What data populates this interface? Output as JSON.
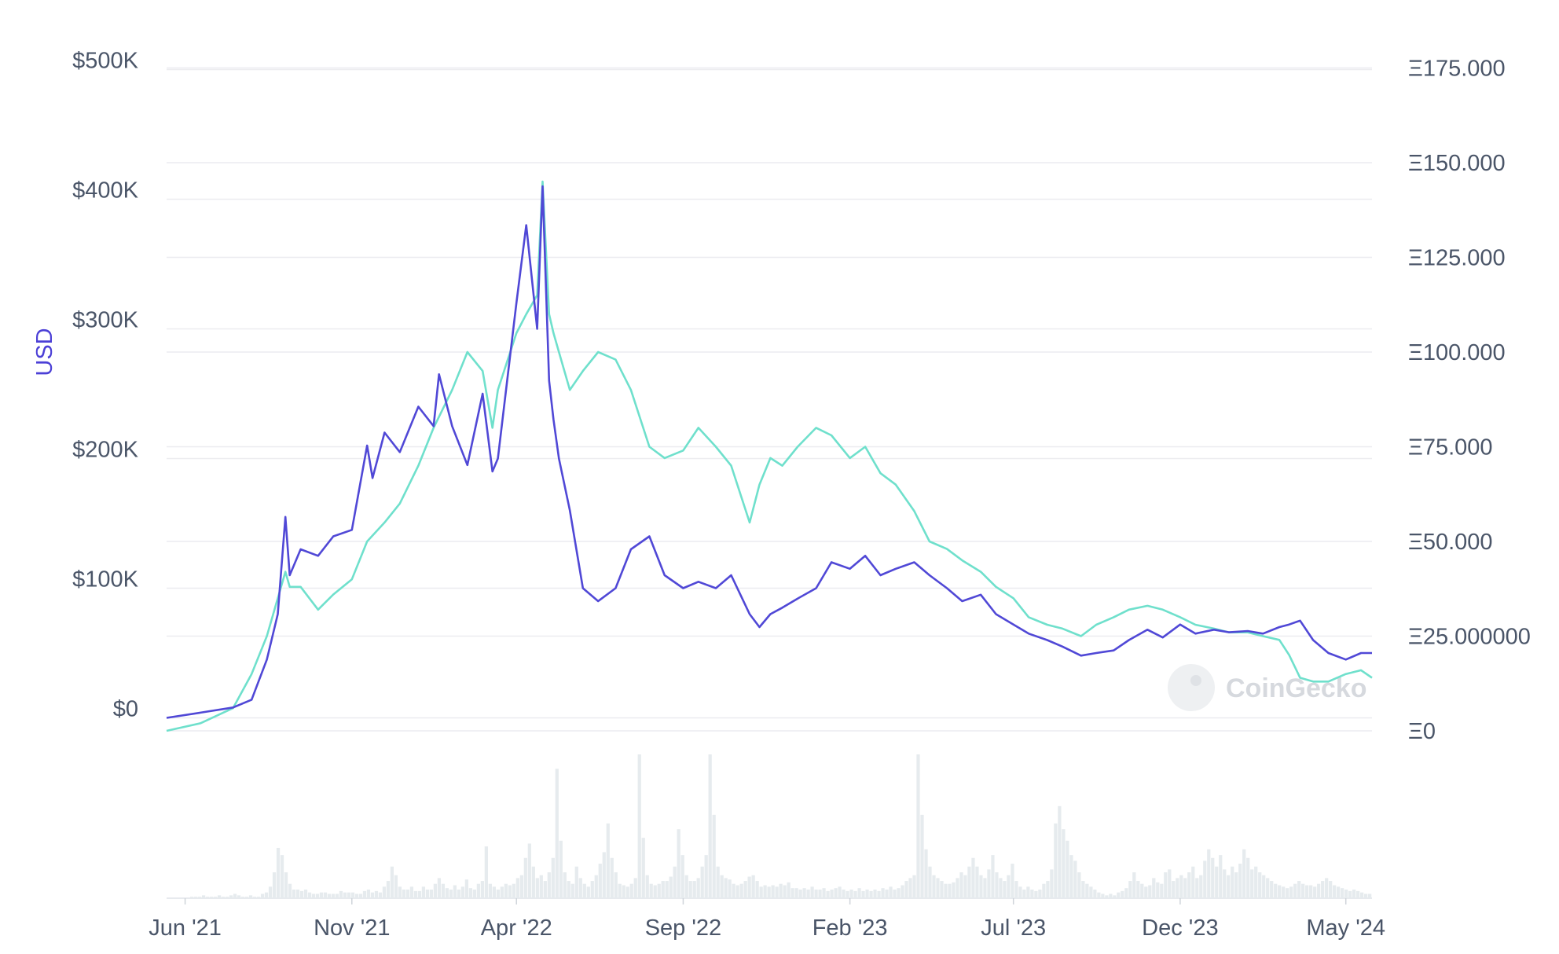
{
  "chart_data": {
    "type": "line",
    "left_axis": {
      "title": "USD",
      "ticks": [
        "$500K",
        "$400K",
        "$300K",
        "$200K",
        "$100K",
        "$0"
      ],
      "tick_values": [
        500000,
        400000,
        300000,
        200000,
        100000,
        0
      ],
      "ylim": [
        -10000,
        510000
      ]
    },
    "right_axis": {
      "title": "",
      "ticks": [
        "Ξ175.000",
        "Ξ150.000",
        "Ξ125.000",
        "Ξ100.000",
        "Ξ75.000",
        "Ξ50.000",
        "Ξ25.000000",
        "Ξ0"
      ],
      "tick_values": [
        175,
        150,
        125,
        100,
        75,
        50,
        25,
        0
      ],
      "ylim": [
        0,
        178
      ]
    },
    "x_axis": {
      "ticks": [
        "Jun '21",
        "Nov '21",
        "Apr '22",
        "Sep '22",
        "Feb '23",
        "Jul '23",
        "Dec '23",
        "May '24"
      ],
      "tick_dates": [
        "2021-06-01",
        "2021-11-01",
        "2022-04-01",
        "2022-09-01",
        "2023-02-01",
        "2023-07-01",
        "2023-12-01",
        "2024-05-01"
      ],
      "xlim": [
        "2021-05-15",
        "2024-05-25"
      ]
    },
    "grid": true,
    "series": [
      {
        "axis": "left",
        "color": "#5048d6",
        "x": [
          "2021-05-15",
          "2021-06-15",
          "2021-07-15",
          "2021-08-01",
          "2021-08-15",
          "2021-08-25",
          "2021-09-01",
          "2021-09-05",
          "2021-09-15",
          "2021-10-01",
          "2021-10-15",
          "2021-11-01",
          "2021-11-15",
          "2021-11-20",
          "2021-12-01",
          "2021-12-15",
          "2022-01-01",
          "2022-01-15",
          "2022-01-20",
          "2022-02-01",
          "2022-02-15",
          "2022-03-01",
          "2022-03-10",
          "2022-03-15",
          "2022-04-01",
          "2022-04-10",
          "2022-04-20",
          "2022-04-25",
          "2022-05-01",
          "2022-05-05",
          "2022-05-10",
          "2022-05-20",
          "2022-06-01",
          "2022-06-15",
          "2022-07-01",
          "2022-07-15",
          "2022-08-01",
          "2022-08-15",
          "2022-09-01",
          "2022-09-15",
          "2022-10-01",
          "2022-10-15",
          "2022-11-01",
          "2022-11-10",
          "2022-11-20",
          "2022-12-01",
          "2022-12-15",
          "2023-01-01",
          "2023-01-15",
          "2023-02-01",
          "2023-02-15",
          "2023-03-01",
          "2023-03-15",
          "2023-04-01",
          "2023-04-15",
          "2023-05-01",
          "2023-05-15",
          "2023-06-01",
          "2023-06-15",
          "2023-07-01",
          "2023-07-15",
          "2023-08-01",
          "2023-08-15",
          "2023-09-01",
          "2023-09-15",
          "2023-10-01",
          "2023-10-15",
          "2023-11-01",
          "2023-11-15",
          "2023-12-01",
          "2023-12-15",
          "2024-01-01",
          "2024-01-15",
          "2024-02-01",
          "2024-02-15",
          "2024-03-01",
          "2024-03-10",
          "2024-03-20",
          "2024-04-01",
          "2024-04-15",
          "2024-05-01",
          "2024-05-15",
          "2024-05-25"
        ],
        "values": [
          0,
          4000,
          8000,
          14000,
          45000,
          80000,
          155000,
          110000,
          130000,
          125000,
          140000,
          145000,
          210000,
          185000,
          220000,
          205000,
          240000,
          225000,
          265000,
          225000,
          195000,
          250000,
          190000,
          200000,
          320000,
          380000,
          300000,
          410000,
          260000,
          230000,
          200000,
          160000,
          100000,
          90000,
          100000,
          130000,
          140000,
          110000,
          100000,
          105000,
          100000,
          110000,
          80000,
          70000,
          80000,
          85000,
          92000,
          100000,
          120000,
          115000,
          125000,
          110000,
          115000,
          120000,
          110000,
          100000,
          90000,
          95000,
          80000,
          72000,
          65000,
          60000,
          55000,
          48000,
          50000,
          52000,
          60000,
          68000,
          62000,
          72000,
          65000,
          68000,
          66000,
          67000,
          65000,
          70000,
          72000,
          75000,
          60000,
          50000,
          45000,
          50000,
          50000
        ]
      },
      {
        "axis": "right",
        "color": "#6fe0cc",
        "x": [
          "2021-05-15",
          "2021-06-15",
          "2021-07-15",
          "2021-08-01",
          "2021-08-15",
          "2021-08-25",
          "2021-09-01",
          "2021-09-05",
          "2021-09-15",
          "2021-10-01",
          "2021-10-15",
          "2021-11-01",
          "2021-11-15",
          "2021-12-01",
          "2021-12-15",
          "2022-01-01",
          "2022-01-15",
          "2022-02-01",
          "2022-02-15",
          "2022-03-01",
          "2022-03-10",
          "2022-03-15",
          "2022-04-01",
          "2022-04-10",
          "2022-04-20",
          "2022-04-25",
          "2022-05-01",
          "2022-05-05",
          "2022-05-10",
          "2022-05-20",
          "2022-06-01",
          "2022-06-15",
          "2022-07-01",
          "2022-07-15",
          "2022-08-01",
          "2022-08-15",
          "2022-09-01",
          "2022-09-15",
          "2022-10-01",
          "2022-10-15",
          "2022-11-01",
          "2022-11-10",
          "2022-11-20",
          "2022-12-01",
          "2022-12-15",
          "2023-01-01",
          "2023-01-15",
          "2023-02-01",
          "2023-02-15",
          "2023-03-01",
          "2023-03-15",
          "2023-04-01",
          "2023-04-15",
          "2023-05-01",
          "2023-05-15",
          "2023-06-01",
          "2023-06-15",
          "2023-07-01",
          "2023-07-15",
          "2023-08-01",
          "2023-08-15",
          "2023-09-01",
          "2023-09-15",
          "2023-10-01",
          "2023-10-15",
          "2023-11-01",
          "2023-11-15",
          "2023-12-01",
          "2023-12-15",
          "2024-01-01",
          "2024-01-15",
          "2024-02-01",
          "2024-02-15",
          "2024-03-01",
          "2024-03-10",
          "2024-03-20",
          "2024-04-01",
          "2024-04-15",
          "2024-05-01",
          "2024-05-15",
          "2024-05-25"
        ],
        "values": [
          0,
          2,
          6,
          15,
          25,
          35,
          42,
          38,
          38,
          32,
          36,
          40,
          50,
          55,
          60,
          70,
          80,
          90,
          100,
          95,
          80,
          90,
          105,
          110,
          115,
          145,
          110,
          105,
          100,
          90,
          95,
          100,
          98,
          90,
          75,
          72,
          74,
          80,
          75,
          70,
          55,
          65,
          72,
          70,
          75,
          80,
          78,
          72,
          75,
          68,
          65,
          58,
          50,
          48,
          45,
          42,
          38,
          35,
          30,
          28,
          27,
          25,
          28,
          30,
          32,
          33,
          32,
          30,
          28,
          27,
          26,
          26,
          25,
          24,
          20,
          14,
          13,
          13,
          15,
          16,
          14
        ]
      }
    ],
    "volume": {
      "color": "#e6ebee",
      "values": [
        0,
        0,
        0,
        0,
        0,
        0,
        1,
        1,
        1,
        2,
        1,
        1,
        1,
        2,
        1,
        1,
        2,
        3,
        2,
        1,
        1,
        2,
        1,
        1,
        3,
        4,
        8,
        18,
        35,
        30,
        18,
        10,
        6,
        6,
        5,
        6,
        4,
        3,
        3,
        4,
        4,
        3,
        3,
        3,
        5,
        4,
        4,
        4,
        3,
        3,
        5,
        6,
        4,
        5,
        4,
        8,
        12,
        22,
        16,
        8,
        6,
        6,
        8,
        5,
        5,
        8,
        6,
        6,
        10,
        14,
        10,
        7,
        6,
        9,
        6,
        8,
        13,
        7,
        6,
        10,
        12,
        36,
        10,
        8,
        6,
        8,
        10,
        9,
        10,
        14,
        16,
        28,
        38,
        22,
        14,
        16,
        12,
        18,
        28,
        90,
        40,
        18,
        12,
        10,
        22,
        14,
        10,
        8,
        12,
        16,
        24,
        32,
        52,
        28,
        18,
        10,
        9,
        8,
        10,
        14,
        100,
        42,
        16,
        10,
        9,
        10,
        12,
        12,
        15,
        22,
        48,
        30,
        16,
        12,
        12,
        14,
        22,
        30,
        100,
        58,
        22,
        16,
        14,
        13,
        10,
        9,
        10,
        12,
        15,
        16,
        12,
        8,
        9,
        8,
        9,
        8,
        10,
        9,
        11,
        7,
        7,
        6,
        7,
        6,
        8,
        6,
        6,
        7,
        5,
        6,
        7,
        8,
        6,
        5,
        6,
        5,
        7,
        5,
        6,
        5,
        6,
        5,
        7,
        6,
        8,
        6,
        7,
        9,
        12,
        14,
        16,
        100,
        58,
        34,
        22,
        16,
        14,
        12,
        10,
        10,
        11,
        14,
        18,
        16,
        22,
        28,
        22,
        16,
        14,
        20,
        30,
        18,
        14,
        12,
        16,
        24,
        12,
        8,
        6,
        8,
        6,
        5,
        6,
        10,
        12,
        20,
        52,
        64,
        48,
        40,
        30,
        26,
        18,
        12,
        10,
        8,
        6,
        4,
        3,
        2,
        3,
        2,
        4,
        5,
        7,
        12,
        18,
        12,
        10,
        8,
        9,
        14,
        11,
        10,
        18,
        20,
        12,
        14,
        16,
        14,
        18,
        22,
        14,
        16,
        26,
        34,
        28,
        22,
        30,
        20,
        16,
        22,
        18,
        24,
        34,
        28,
        20,
        22,
        18,
        16,
        14,
        12,
        10,
        9,
        8,
        7,
        8,
        10,
        12,
        10,
        9,
        9,
        8,
        10,
        12,
        14,
        12,
        9,
        8,
        7,
        6,
        5,
        6,
        5,
        4,
        3,
        3
      ]
    }
  },
  "watermark": {
    "text": "CoinGecko"
  }
}
